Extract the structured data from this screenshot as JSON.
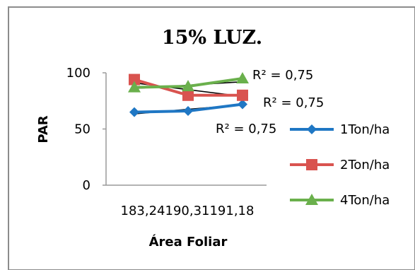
{
  "chart_data": {
    "type": "line",
    "title": "15% LUZ.",
    "xlabel": "Área Foliar",
    "ylabel": "PAR",
    "categories": [
      "183,24",
      "190,31",
      "191,18"
    ],
    "category_axis_label": "183,24190,31191,18",
    "ylim": [
      0,
      100
    ],
    "yticks": [
      0,
      50,
      100
    ],
    "grid": false,
    "legend_position": "right",
    "series": [
      {
        "name": "1Ton/ha",
        "values": [
          65,
          66,
          72
        ],
        "color": "#1f77c4",
        "marker": "diamond",
        "trendline": [
          63.5,
          67.5,
          71.5
        ],
        "r2": "R² = 0,75"
      },
      {
        "name": "2Ton/ha",
        "values": [
          94,
          80,
          80
        ],
        "color": "#d9534f",
        "marker": "square",
        "trendline": [
          91,
          85,
          79
        ],
        "r2": "R² = 0,75"
      },
      {
        "name": "4Ton/ha",
        "values": [
          87,
          88,
          95
        ],
        "color": "#6ab04c",
        "marker": "triangle",
        "trendline": [
          86,
          89,
          92
        ],
        "r2": "R² = 0,75"
      }
    ]
  }
}
